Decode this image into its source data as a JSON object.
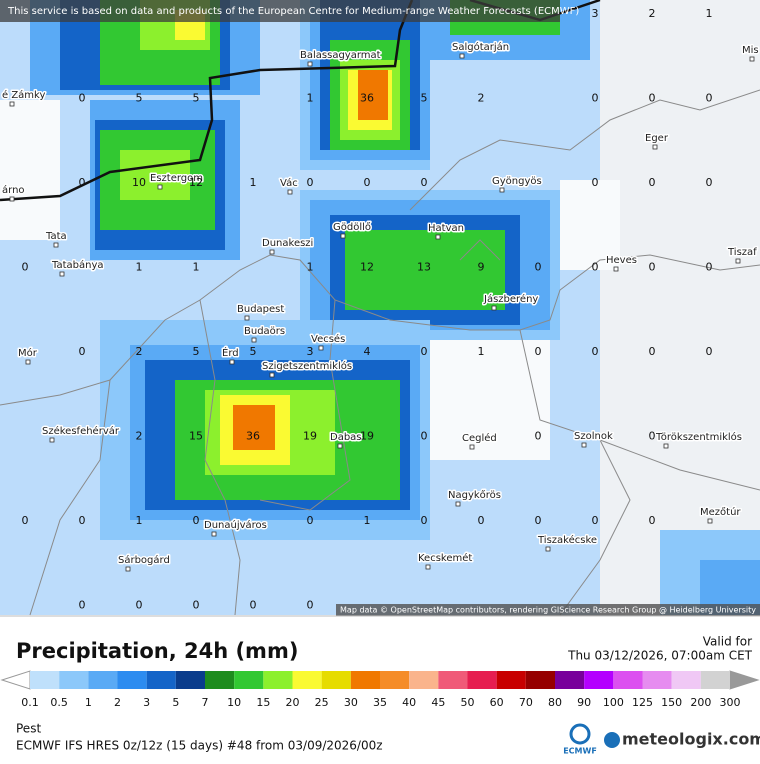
{
  "banner": "This service is based on data and products of the European Centre for Medium-range Weather Forecasts (ECMWF)",
  "attribution": "Map data © OpenStreetMap contributors, rendering GIScience Research Group @ Heidelberg University",
  "places": [
    "é Zámky",
    "Balassagyarmat",
    "Salgótarján",
    "Mis",
    "Eger",
    "árno",
    "Esztergom",
    "Vác",
    "Gyöngyös",
    "Tata",
    "Dunakeszi",
    "Gödöllő",
    "Hatvan",
    "Heves",
    "Tiszaf",
    "Tatabánya",
    "Budapest",
    "Jászberény",
    "Budaörs",
    "Vecsés",
    "Mór",
    "Érd",
    "Szigetszentmiklós",
    "Székesfehérvár",
    "Dabas",
    "Cegléd",
    "Szolnok",
    "Törökszentmiklós",
    "Nagykőrös",
    "Mezőtúr",
    "Dunaújváros",
    "Tiszakécske",
    "Kecskemét",
    "Sárbogárd"
  ],
  "grid_values": [
    [
      null,
      null,
      null,
      null,
      null,
      null,
      null,
      null,
      null,
      null,
      3,
      2,
      1
    ],
    [
      null,
      0,
      5,
      5,
      null,
      1,
      36,
      5,
      2,
      null,
      0,
      0,
      0
    ],
    [
      null,
      0,
      10,
      12,
      1,
      0,
      0,
      0,
      null,
      null,
      0,
      0,
      0
    ],
    [
      0,
      null,
      1,
      1,
      null,
      1,
      12,
      13,
      9,
      0,
      0,
      0,
      0
    ],
    [
      null,
      0,
      2,
      5,
      5,
      3,
      4,
      0,
      1,
      0,
      0,
      0,
      0
    ],
    [
      null,
      null,
      2,
      15,
      36,
      19,
      19,
      0,
      null,
      0,
      null,
      0,
      null
    ],
    [
      0,
      0,
      1,
      0,
      null,
      0,
      1,
      0,
      0,
      0,
      0,
      0,
      null
    ],
    [
      null,
      0,
      0,
      0,
      0,
      0,
      null,
      null,
      null,
      null,
      null,
      null,
      null
    ]
  ],
  "title": "Precipitation, 24h (mm)",
  "valid_label": "Valid for",
  "valid_time": "Thu 03/12/2026, 07:00am CET",
  "legend": {
    "labels": [
      "0.1",
      "0.5",
      "1",
      "2",
      "3",
      "5",
      "7",
      "10",
      "15",
      "20",
      "25",
      "30",
      "35",
      "40",
      "45",
      "50",
      "60",
      "70",
      "80",
      "90",
      "100",
      "125",
      "150",
      "200",
      "300"
    ],
    "colors": [
      "#bfe0fb",
      "#8cc8fa",
      "#5aaaf5",
      "#2d8cf0",
      "#1464c8",
      "#0a3c8c",
      "#1e8c1e",
      "#32c832",
      "#8cf02d",
      "#fafa32",
      "#e6dc00",
      "#f07800",
      "#f58c28",
      "#fab48c",
      "#f05a78",
      "#e61e50",
      "#c80000",
      "#960000",
      "#78009b",
      "#b400ff",
      "#dc50f0",
      "#e68cf0",
      "#f0c8f5",
      "#d2d2d2"
    ]
  },
  "location": "Pest",
  "model": "ECMWF IFS HRES 0z/12z (15 days) #48 from  03/09/2026/00z",
  "logo_ecmwf": "ECMWF",
  "logo_site": "meteologix.com"
}
